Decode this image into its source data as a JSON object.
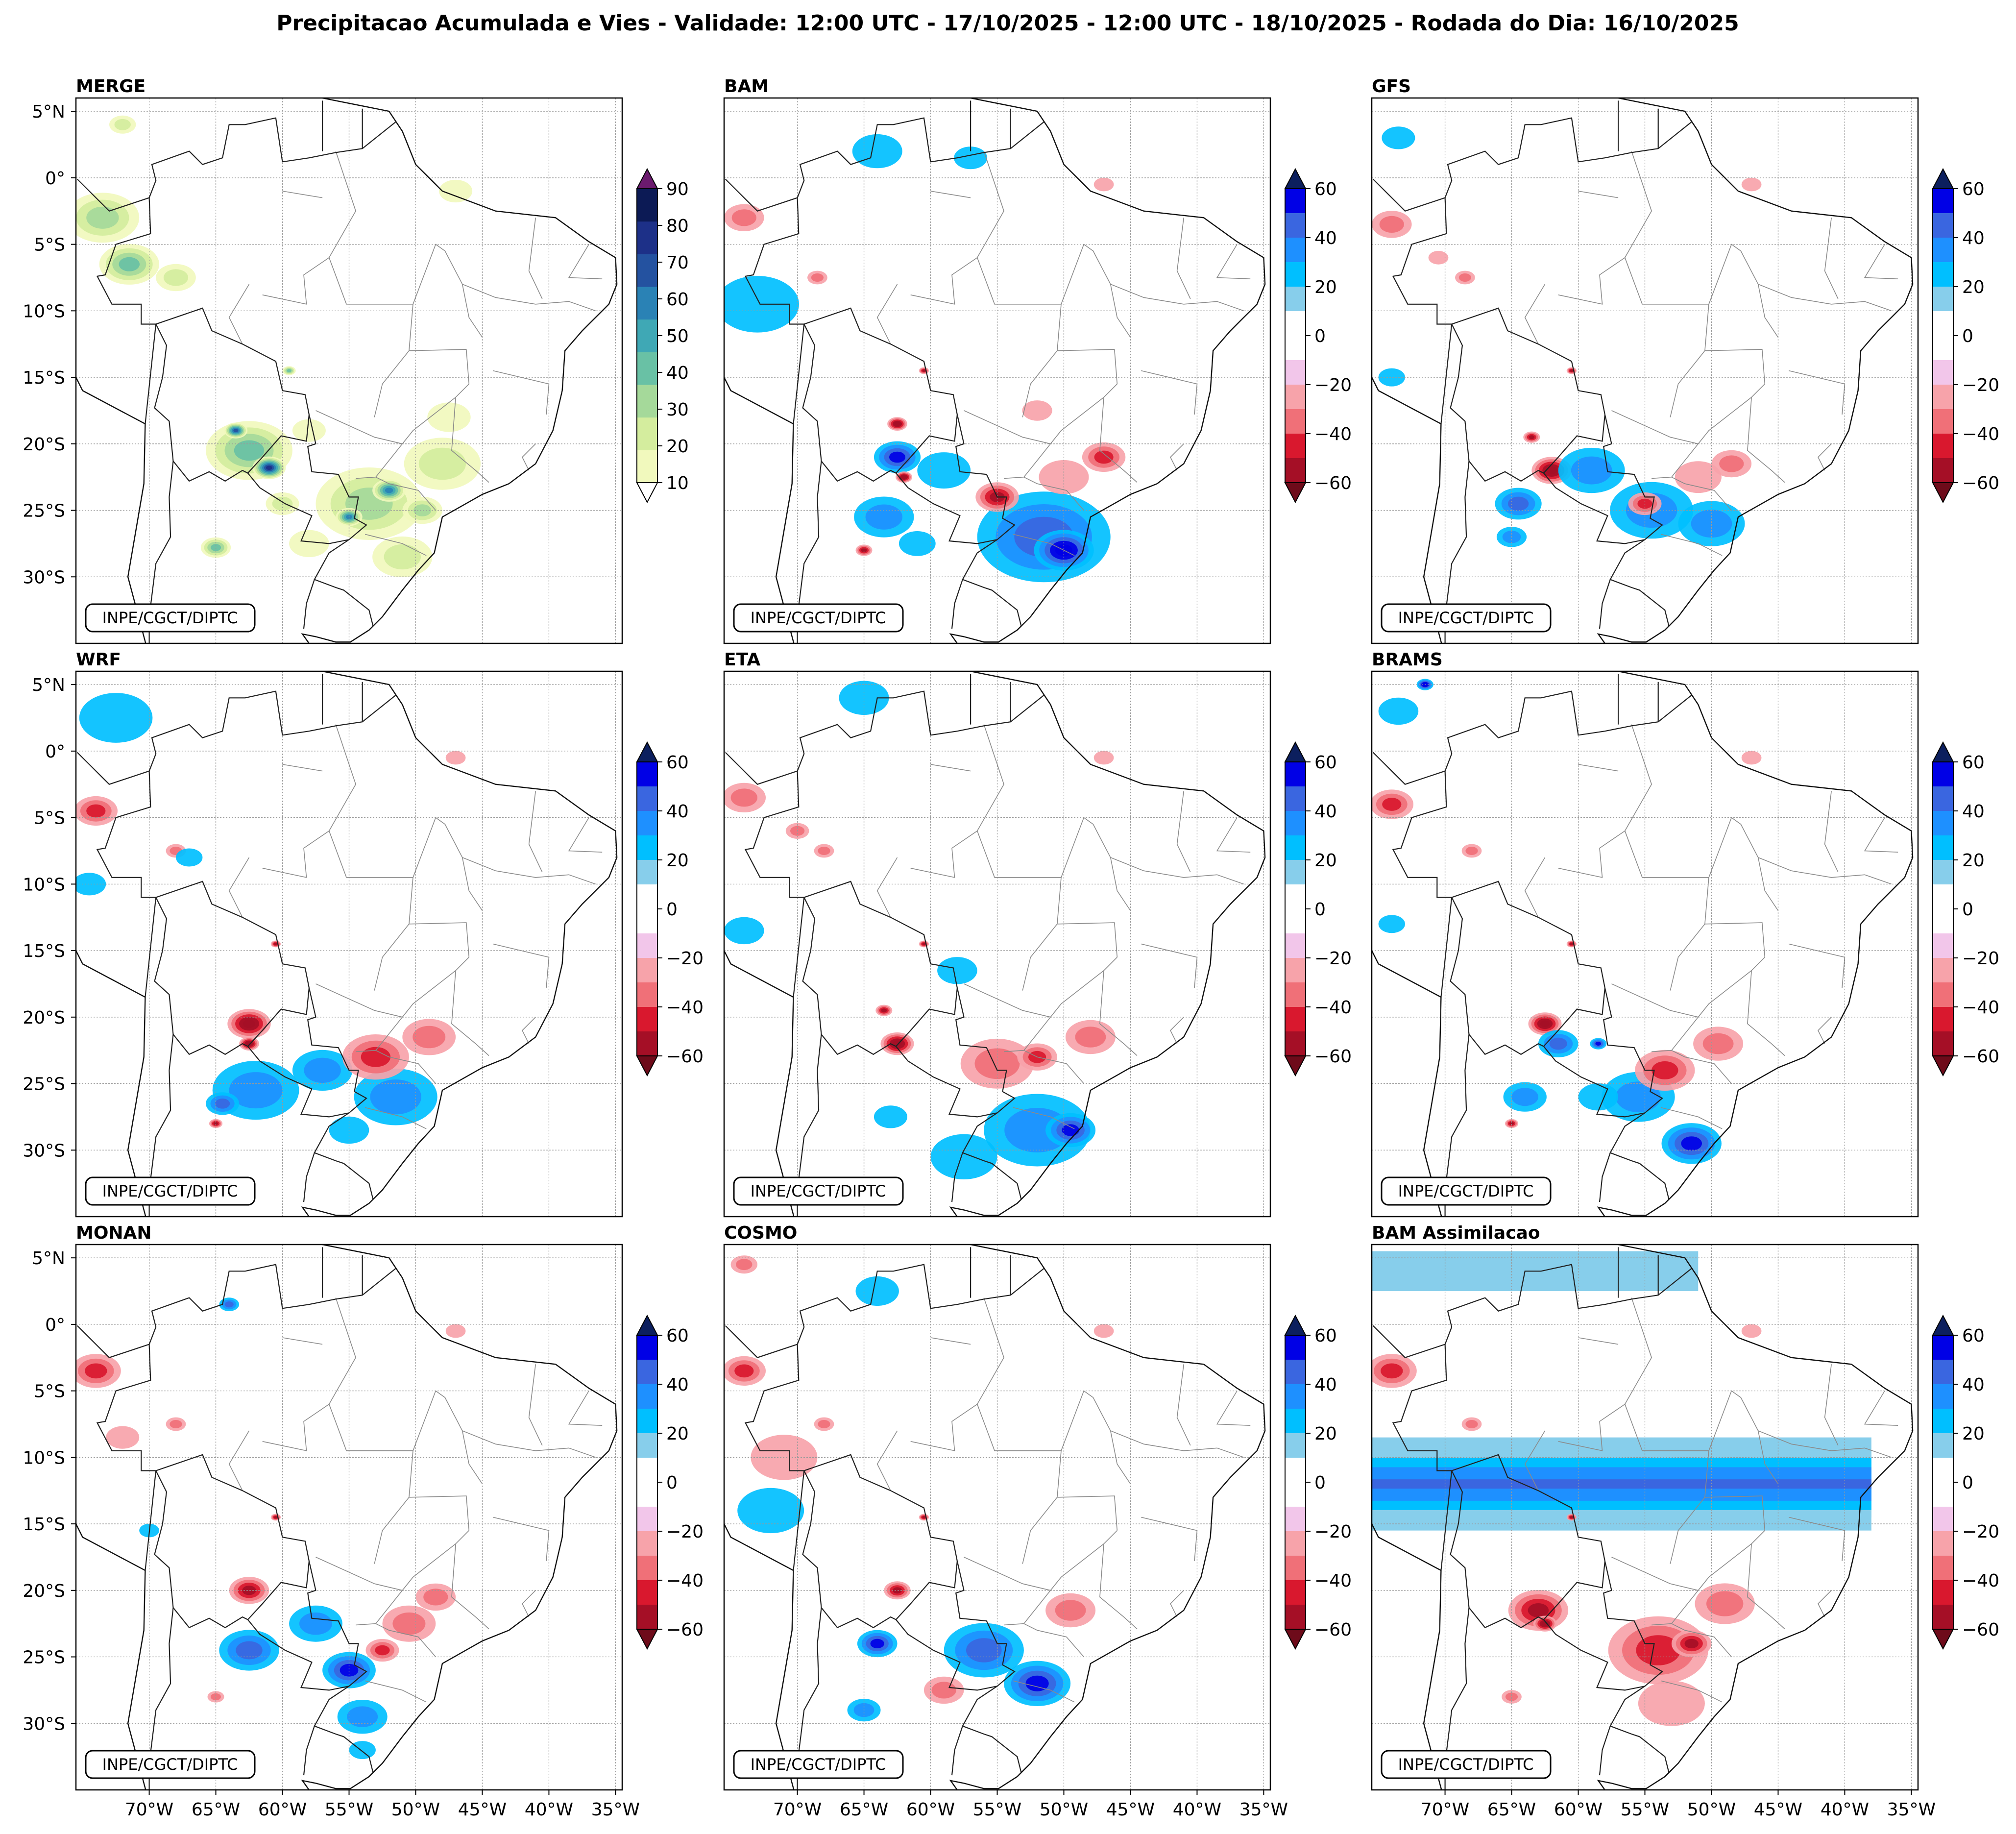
{
  "figure": {
    "title": "Precipitacao Acumulada e Vies - Validade: 12:00 UTC - 17/10/2025 - 12:00 UTC - 18/10/2025 - Rodada do Dia: 16/10/2025",
    "credit": "INPE/CGCT/DIPTC",
    "lat_ticks": [
      "5°N",
      "0°",
      "5°S",
      "10°S",
      "15°S",
      "20°S",
      "25°S",
      "30°S"
    ],
    "lon_ticks": [
      "70°W",
      "65°W",
      "60°W",
      "55°W",
      "50°W",
      "45°W",
      "40°W",
      "35°W"
    ],
    "extent": {
      "lon_min": -75.5,
      "lon_max": -34.5,
      "lat_min": -35.0,
      "lat_max": 6.0
    }
  },
  "colorbars": {
    "precip": {
      "labels": [
        "90",
        "80",
        "70",
        "60",
        "50",
        "40",
        "30",
        "20",
        "10"
      ],
      "colors": [
        "#f1f9bd",
        "#d4ed9e",
        "#a5d99a",
        "#69c1a5",
        "#3fa8b5",
        "#2a82b5",
        "#2452a0",
        "#1d3088",
        "#0c1a55"
      ],
      "extend_top_color": "#6b1a6e",
      "extend_bottom_color": "#ffffff"
    },
    "bias": {
      "labels": [
        "60",
        "40",
        "20",
        "0",
        "−20",
        "−40",
        "−60"
      ],
      "colors": [
        "#0000e6",
        "#3a66e0",
        "#1e90ff",
        "#00bfff",
        "#87ceeb",
        "#ffffff",
        "#ffffff",
        "#f2c6ea",
        "#f7a3aa",
        "#f07078",
        "#d9182e",
        "#a50f26"
      ],
      "extend_top_color": "#0c1f5e",
      "extend_bottom_color": "#6e0b1a"
    }
  },
  "panels": [
    {
      "title": "MERGE",
      "kind": "precip",
      "blobs": [
        {
          "lon": -73.5,
          "lat": -3.0,
          "r": 2.2,
          "v": 30
        },
        {
          "lon": -71.5,
          "lat": -6.5,
          "r": 1.8,
          "v": 40
        },
        {
          "lon": -68.0,
          "lat": -7.5,
          "r": 1.2,
          "v": 25
        },
        {
          "lon": -72.0,
          "lat": 4.0,
          "r": 0.8,
          "v": 20
        },
        {
          "lon": -47.0,
          "lat": -1.0,
          "r": 1.0,
          "v": 15
        },
        {
          "lon": -62.5,
          "lat": -20.5,
          "r": 2.6,
          "v": 45
        },
        {
          "lon": -61.0,
          "lat": -21.8,
          "r": 1.0,
          "v": 80
        },
        {
          "lon": -63.5,
          "lat": -19.0,
          "r": 0.7,
          "v": 70
        },
        {
          "lon": -60.0,
          "lat": -24.5,
          "r": 1.0,
          "v": 20
        },
        {
          "lon": -65.0,
          "lat": -27.8,
          "r": 0.9,
          "v": 40
        },
        {
          "lon": -58.0,
          "lat": -27.5,
          "r": 1.2,
          "v": 15
        },
        {
          "lon": -53.5,
          "lat": -24.5,
          "r": 3.2,
          "v": 35
        },
        {
          "lon": -52.0,
          "lat": -23.5,
          "r": 1.0,
          "v": 60
        },
        {
          "lon": -55.0,
          "lat": -25.5,
          "r": 0.8,
          "v": 65
        },
        {
          "lon": -48.0,
          "lat": -21.5,
          "r": 2.3,
          "v": 20
        },
        {
          "lon": -51.0,
          "lat": -28.5,
          "r": 1.8,
          "v": 20
        },
        {
          "lon": -49.5,
          "lat": -25.0,
          "r": 1.2,
          "v": 30
        },
        {
          "lon": -59.5,
          "lat": -14.5,
          "r": 0.4,
          "v": 40
        },
        {
          "lon": -58.0,
          "lat": -19.0,
          "r": 1.0,
          "v": 15
        },
        {
          "lon": -47.5,
          "lat": -18.0,
          "r": 1.3,
          "v": 12
        }
      ]
    },
    {
      "title": "BAM",
      "kind": "bias",
      "blobs": [
        {
          "lon": -74.0,
          "lat": -3.0,
          "r": 1.2,
          "v": -30
        },
        {
          "lon": -73.0,
          "lat": -9.5,
          "r": 2.5,
          "v": 15
        },
        {
          "lon": -68.5,
          "lat": -7.5,
          "r": 0.6,
          "v": -30
        },
        {
          "lon": -64.0,
          "lat": 2.0,
          "r": 1.5,
          "v": 15
        },
        {
          "lon": -57.0,
          "lat": 1.5,
          "r": 1.0,
          "v": 15
        },
        {
          "lon": -47.0,
          "lat": -0.5,
          "r": 0.6,
          "v": -15
        },
        {
          "lon": -62.5,
          "lat": -21.0,
          "r": 1.4,
          "v": 45
        },
        {
          "lon": -62.5,
          "lat": -18.5,
          "r": 0.6,
          "v": -60
        },
        {
          "lon": -62.0,
          "lat": -22.5,
          "r": 0.5,
          "v": -55
        },
        {
          "lon": -63.5,
          "lat": -25.5,
          "r": 1.8,
          "v": 30
        },
        {
          "lon": -59.0,
          "lat": -22.0,
          "r": 1.6,
          "v": 20
        },
        {
          "lon": -61.0,
          "lat": -27.5,
          "r": 1.1,
          "v": 20
        },
        {
          "lon": -51.5,
          "lat": -27.0,
          "r": 4.0,
          "v": 35
        },
        {
          "lon": -50.0,
          "lat": -28.0,
          "r": 1.8,
          "v": 55
        },
        {
          "lon": -55.0,
          "lat": -24.0,
          "r": 1.3,
          "v": -45
        },
        {
          "lon": -50.0,
          "lat": -22.5,
          "r": 1.5,
          "v": -20
        },
        {
          "lon": -47.0,
          "lat": -21.0,
          "r": 1.3,
          "v": -35
        },
        {
          "lon": -65.0,
          "lat": -28.0,
          "r": 0.5,
          "v": -50
        },
        {
          "lon": -60.5,
          "lat": -14.5,
          "r": 0.3,
          "v": -45
        },
        {
          "lon": -52.0,
          "lat": -17.5,
          "r": 0.9,
          "v": -15
        }
      ]
    },
    {
      "title": "GFS",
      "kind": "bias",
      "blobs": [
        {
          "lon": -74.0,
          "lat": -3.5,
          "r": 1.2,
          "v": -30
        },
        {
          "lon": -73.5,
          "lat": 3.0,
          "r": 1.0,
          "v": 15
        },
        {
          "lon": -68.5,
          "lat": -7.5,
          "r": 0.6,
          "v": -25
        },
        {
          "lon": -70.5,
          "lat": -6.0,
          "r": 0.6,
          "v": -20
        },
        {
          "lon": -47.0,
          "lat": -0.5,
          "r": 0.6,
          "v": -15
        },
        {
          "lon": -74.0,
          "lat": -15.0,
          "r": 0.8,
          "v": 15
        },
        {
          "lon": -62.0,
          "lat": -22.0,
          "r": 1.2,
          "v": -60
        },
        {
          "lon": -64.5,
          "lat": -24.5,
          "r": 1.4,
          "v": 40
        },
        {
          "lon": -65.0,
          "lat": -27.0,
          "r": 0.9,
          "v": 30
        },
        {
          "lon": -59.0,
          "lat": -22.0,
          "r": 2.0,
          "v": 30
        },
        {
          "lon": -54.5,
          "lat": -25.0,
          "r": 2.5,
          "v": 25
        },
        {
          "lon": -50.0,
          "lat": -26.0,
          "r": 2.0,
          "v": 30
        },
        {
          "lon": -55.0,
          "lat": -24.5,
          "r": 1.0,
          "v": -35
        },
        {
          "lon": -48.5,
          "lat": -21.5,
          "r": 1.2,
          "v": -30
        },
        {
          "lon": -51.0,
          "lat": -22.5,
          "r": 1.4,
          "v": -20
        },
        {
          "lon": -63.5,
          "lat": -19.5,
          "r": 0.5,
          "v": -50
        },
        {
          "lon": -60.5,
          "lat": -14.5,
          "r": 0.3,
          "v": -45
        }
      ]
    },
    {
      "title": "WRF",
      "kind": "bias",
      "blobs": [
        {
          "lon": -74.0,
          "lat": -4.5,
          "r": 1.3,
          "v": -35
        },
        {
          "lon": -72.5,
          "lat": 2.5,
          "r": 2.2,
          "v": 15
        },
        {
          "lon": -68.0,
          "lat": -7.5,
          "r": 0.6,
          "v": -30
        },
        {
          "lon": -74.5,
          "lat": -10.0,
          "r": 1.0,
          "v": 15
        },
        {
          "lon": -47.0,
          "lat": -0.5,
          "r": 0.6,
          "v": -15
        },
        {
          "lon": -67.0,
          "lat": -8.0,
          "r": 0.8,
          "v": 15
        },
        {
          "lon": -62.5,
          "lat": -20.5,
          "r": 1.3,
          "v": -55
        },
        {
          "lon": -62.5,
          "lat": -22.0,
          "r": 0.6,
          "v": -60
        },
        {
          "lon": -62.0,
          "lat": -25.5,
          "r": 2.6,
          "v": 25
        },
        {
          "lon": -64.5,
          "lat": -26.5,
          "r": 1.0,
          "v": 40
        },
        {
          "lon": -57.0,
          "lat": -24.0,
          "r": 1.8,
          "v": 25
        },
        {
          "lon": -51.5,
          "lat": -26.0,
          "r": 2.5,
          "v": 30
        },
        {
          "lon": -53.0,
          "lat": -23.0,
          "r": 2.0,
          "v": -40
        },
        {
          "lon": -49.0,
          "lat": -21.5,
          "r": 1.6,
          "v": -30
        },
        {
          "lon": -55.0,
          "lat": -28.5,
          "r": 1.2,
          "v": 20
        },
        {
          "lon": -60.5,
          "lat": -14.5,
          "r": 0.3,
          "v": -45
        },
        {
          "lon": -65.0,
          "lat": -28.0,
          "r": 0.4,
          "v": -50
        }
      ]
    },
    {
      "title": "ETA",
      "kind": "bias",
      "blobs": [
        {
          "lon": -74.0,
          "lat": -3.5,
          "r": 1.3,
          "v": -30
        },
        {
          "lon": -68.0,
          "lat": -7.5,
          "r": 0.6,
          "v": -30
        },
        {
          "lon": -70.0,
          "lat": -6.0,
          "r": 0.7,
          "v": -25
        },
        {
          "lon": -65.0,
          "lat": 4.0,
          "r": 1.5,
          "v": 15
        },
        {
          "lon": -47.0,
          "lat": -0.5,
          "r": 0.6,
          "v": -15
        },
        {
          "lon": -58.0,
          "lat": -16.5,
          "r": 1.2,
          "v": 15
        },
        {
          "lon": -62.5,
          "lat": -22.0,
          "r": 1.0,
          "v": -60
        },
        {
          "lon": -63.5,
          "lat": -19.5,
          "r": 0.5,
          "v": -50
        },
        {
          "lon": -55.0,
          "lat": -23.5,
          "r": 2.2,
          "v": -25
        },
        {
          "lon": -52.0,
          "lat": -23.0,
          "r": 1.2,
          "v": -35
        },
        {
          "lon": -48.0,
          "lat": -21.5,
          "r": 1.5,
          "v": -30
        },
        {
          "lon": -52.0,
          "lat": -28.5,
          "r": 3.2,
          "v": 30
        },
        {
          "lon": -49.5,
          "lat": -28.5,
          "r": 1.5,
          "v": 50
        },
        {
          "lon": -57.5,
          "lat": -30.5,
          "r": 2.0,
          "v": 15
        },
        {
          "lon": -63.0,
          "lat": -27.5,
          "r": 1.0,
          "v": 15
        },
        {
          "lon": -60.5,
          "lat": -14.5,
          "r": 0.3,
          "v": -45
        },
        {
          "lon": -74.0,
          "lat": -13.5,
          "r": 1.2,
          "v": 15
        }
      ]
    },
    {
      "title": "BRAMS",
      "kind": "bias",
      "blobs": [
        {
          "lon": -74.0,
          "lat": -4.0,
          "r": 1.3,
          "v": -35
        },
        {
          "lon": -73.5,
          "lat": 3.0,
          "r": 1.2,
          "v": 20
        },
        {
          "lon": -71.5,
          "lat": 5.0,
          "r": 0.5,
          "v": 55
        },
        {
          "lon": -68.0,
          "lat": -7.5,
          "r": 0.6,
          "v": -30
        },
        {
          "lon": -47.0,
          "lat": -0.5,
          "r": 0.6,
          "v": -15
        },
        {
          "lon": -74.0,
          "lat": -13.0,
          "r": 0.8,
          "v": 15
        },
        {
          "lon": -62.5,
          "lat": -20.5,
          "r": 1.0,
          "v": -55
        },
        {
          "lon": -61.5,
          "lat": -22.0,
          "r": 1.2,
          "v": 40
        },
        {
          "lon": -58.5,
          "lat": -22.0,
          "r": 0.5,
          "v": 50
        },
        {
          "lon": -64.0,
          "lat": -26.0,
          "r": 1.3,
          "v": 25
        },
        {
          "lon": -55.5,
          "lat": -26.0,
          "r": 2.2,
          "v": 30
        },
        {
          "lon": -51.5,
          "lat": -29.5,
          "r": 1.8,
          "v": 50
        },
        {
          "lon": -53.5,
          "lat": -24.0,
          "r": 1.8,
          "v": -40
        },
        {
          "lon": -49.5,
          "lat": -22.0,
          "r": 1.5,
          "v": -30
        },
        {
          "lon": -58.5,
          "lat": -26.0,
          "r": 1.2,
          "v": 15
        },
        {
          "lon": -60.5,
          "lat": -14.5,
          "r": 0.3,
          "v": -45
        },
        {
          "lon": -65.0,
          "lat": -28.0,
          "r": 0.4,
          "v": -50
        }
      ]
    },
    {
      "title": "MONAN",
      "kind": "bias",
      "blobs": [
        {
          "lon": -74.0,
          "lat": -3.5,
          "r": 1.5,
          "v": -35
        },
        {
          "lon": -68.0,
          "lat": -7.5,
          "r": 0.6,
          "v": -30
        },
        {
          "lon": -72.0,
          "lat": -8.5,
          "r": 1.0,
          "v": -15
        },
        {
          "lon": -64.0,
          "lat": 1.5,
          "r": 0.6,
          "v": 40
        },
        {
          "lon": -47.0,
          "lat": -0.5,
          "r": 0.6,
          "v": -15
        },
        {
          "lon": -70.0,
          "lat": -15.5,
          "r": 0.6,
          "v": 15
        },
        {
          "lon": -62.5,
          "lat": -20.0,
          "r": 1.2,
          "v": -45
        },
        {
          "lon": -62.5,
          "lat": -24.5,
          "r": 1.8,
          "v": 35
        },
        {
          "lon": -57.5,
          "lat": -22.5,
          "r": 1.6,
          "v": 30
        },
        {
          "lon": -55.0,
          "lat": -26.0,
          "r": 1.6,
          "v": 45
        },
        {
          "lon": -50.5,
          "lat": -22.5,
          "r": 1.6,
          "v": -30
        },
        {
          "lon": -48.5,
          "lat": -20.5,
          "r": 1.2,
          "v": -25
        },
        {
          "lon": -54.0,
          "lat": -29.5,
          "r": 1.5,
          "v": 30
        },
        {
          "lon": -52.5,
          "lat": -24.5,
          "r": 1.0,
          "v": -40
        },
        {
          "lon": -54.0,
          "lat": -32.0,
          "r": 0.8,
          "v": 15
        },
        {
          "lon": -60.5,
          "lat": -14.5,
          "r": 0.3,
          "v": -45
        },
        {
          "lon": -65.0,
          "lat": -28.0,
          "r": 0.5,
          "v": -30
        }
      ]
    },
    {
      "title": "COSMO",
      "kind": "bias",
      "blobs": [
        {
          "lon": -74.0,
          "lat": -3.5,
          "r": 1.3,
          "v": -35
        },
        {
          "lon": -68.0,
          "lat": -7.5,
          "r": 0.6,
          "v": -30
        },
        {
          "lon": -71.0,
          "lat": -10.0,
          "r": 2.0,
          "v": -20
        },
        {
          "lon": -74.0,
          "lat": 4.5,
          "r": 0.8,
          "v": -25
        },
        {
          "lon": -64.0,
          "lat": 2.5,
          "r": 1.3,
          "v": 15
        },
        {
          "lon": -47.0,
          "lat": -0.5,
          "r": 0.6,
          "v": -15
        },
        {
          "lon": -72.0,
          "lat": -14.0,
          "r": 2.0,
          "v": 15
        },
        {
          "lon": -62.5,
          "lat": -20.0,
          "r": 0.8,
          "v": -50
        },
        {
          "lon": -64.0,
          "lat": -24.0,
          "r": 1.2,
          "v": 45
        },
        {
          "lon": -56.0,
          "lat": -24.5,
          "r": 2.4,
          "v": 35
        },
        {
          "lon": -52.0,
          "lat": -27.0,
          "r": 2.0,
          "v": 50
        },
        {
          "lon": -49.5,
          "lat": -21.5,
          "r": 1.5,
          "v": -30
        },
        {
          "lon": -59.0,
          "lat": -27.5,
          "r": 1.2,
          "v": -25
        },
        {
          "lon": -65.0,
          "lat": -29.0,
          "r": 1.0,
          "v": 30
        },
        {
          "lon": -60.5,
          "lat": -14.5,
          "r": 0.3,
          "v": -45
        }
      ]
    },
    {
      "title": "BAM Assimilacao",
      "kind": "bias",
      "band": {
        "lat_top": -8.5,
        "lat_bottom": -15.5,
        "lon_east": -38.0
      },
      "top_band": {
        "lat_top": 5.5,
        "lat_bottom": 2.5,
        "lon_east": -51.0
      },
      "blobs": [
        {
          "lon": -74.0,
          "lat": -3.5,
          "r": 1.5,
          "v": -35
        },
        {
          "lon": -68.0,
          "lat": -7.5,
          "r": 0.6,
          "v": -30
        },
        {
          "lon": -47.0,
          "lat": -0.5,
          "r": 0.6,
          "v": -15
        },
        {
          "lon": -63.0,
          "lat": -21.5,
          "r": 1.8,
          "v": -50
        },
        {
          "lon": -62.5,
          "lat": -22.5,
          "r": 0.7,
          "v": -60
        },
        {
          "lon": -54.0,
          "lat": -24.5,
          "r": 3.0,
          "v": -35
        },
        {
          "lon": -51.5,
          "lat": -24.0,
          "r": 1.2,
          "v": -50
        },
        {
          "lon": -49.0,
          "lat": -21.0,
          "r": 1.8,
          "v": -25
        },
        {
          "lon": -53.0,
          "lat": -28.5,
          "r": 2.0,
          "v": -15
        },
        {
          "lon": -65.0,
          "lat": -28.0,
          "r": 0.6,
          "v": -30
        },
        {
          "lon": -60.5,
          "lat": -14.5,
          "r": 0.3,
          "v": -45
        }
      ]
    }
  ]
}
